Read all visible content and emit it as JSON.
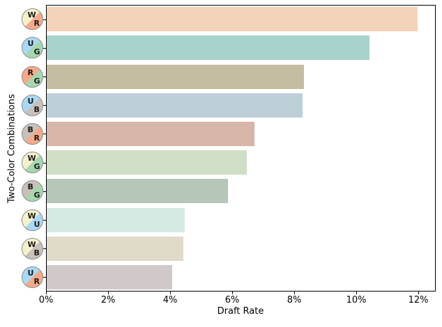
{
  "chart_data": {
    "type": "bar",
    "orientation": "horizontal",
    "title": "",
    "xlabel": "Draft Rate",
    "ylabel": "Two-Color Combinations",
    "xlim": [
      0,
      12.56
    ],
    "grid": false,
    "legend": "none",
    "x_ticks": [
      {
        "value": 0,
        "label": "0%"
      },
      {
        "value": 2,
        "label": "2%"
      },
      {
        "value": 4,
        "label": "4%"
      },
      {
        "value": 6,
        "label": "6%"
      },
      {
        "value": 8,
        "label": "8%"
      },
      {
        "value": 10,
        "label": "10%"
      },
      {
        "value": 12,
        "label": "12%"
      }
    ],
    "categories": [
      "WR",
      "UG",
      "RG",
      "UB",
      "BR",
      "WG",
      "BG",
      "WU",
      "WB",
      "UR"
    ],
    "values": [
      11.95,
      10.4,
      8.3,
      8.25,
      6.7,
      6.45,
      5.85,
      4.45,
      4.4,
      4.05
    ],
    "bars": [
      {
        "pair": [
          "W",
          "R"
        ],
        "value": 11.95,
        "bar_color": "#f3d3b9"
      },
      {
        "pair": [
          "U",
          "G"
        ],
        "value": 10.4,
        "bar_color": "#a8d2cc"
      },
      {
        "pair": [
          "R",
          "G"
        ],
        "value": 8.3,
        "bar_color": "#c4bda2"
      },
      {
        "pair": [
          "U",
          "B"
        ],
        "value": 8.25,
        "bar_color": "#bdcfd9"
      },
      {
        "pair": [
          "B",
          "R"
        ],
        "value": 6.7,
        "bar_color": "#d7b5a8"
      },
      {
        "pair": [
          "W",
          "G"
        ],
        "value": 6.45,
        "bar_color": "#cfdfc5"
      },
      {
        "pair": [
          "B",
          "G"
        ],
        "value": 5.85,
        "bar_color": "#b6c6b8"
      },
      {
        "pair": [
          "W",
          "U"
        ],
        "value": 4.45,
        "bar_color": "#d6eae4"
      },
      {
        "pair": [
          "W",
          "B"
        ],
        "value": 4.4,
        "bar_color": "#e0dbc9"
      },
      {
        "pair": [
          "U",
          "R"
        ],
        "value": 4.05,
        "bar_color": "#d0c8c9"
      }
    ],
    "mana_colors": {
      "W": "#f6f1cd",
      "U": "#aad9f2",
      "B": "#c9c0ba",
      "R": "#f5aa8c",
      "G": "#a6d7ae"
    }
  }
}
